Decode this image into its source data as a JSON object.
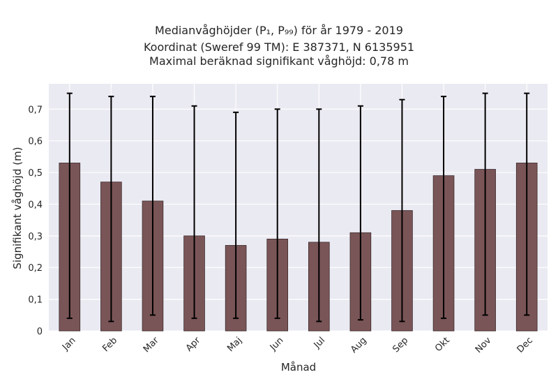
{
  "title": {
    "line1": "Medianvåghöjder (P₁, P₉₉) för år 1979 - 2019",
    "line2": "Koordinat (Sweref 99 TM): E 387371, N 6135951",
    "line3": "Maximal beräknad signifikant våghöjd: 0,78 m"
  },
  "colors": {
    "bar": "#7a5557",
    "bar_edge": "#3a2a2b",
    "plot_bg": "#eaeaf2",
    "grid": "#ffffff",
    "errorbar": "#000000"
  },
  "chart_data": {
    "type": "bar",
    "xlabel": "Månad",
    "ylabel": "Signifikant våghöjd (m)",
    "ylim": [
      0,
      0.78
    ],
    "yticks": [
      "0",
      "0,1",
      "0,2",
      "0,3",
      "0,4",
      "0,5",
      "0,6",
      "0,7"
    ],
    "ytick_values": [
      0,
      0.1,
      0.2,
      0.3,
      0.4,
      0.5,
      0.6,
      0.7
    ],
    "grid": true,
    "categories": [
      "Jan",
      "Feb",
      "Mar",
      "Apr",
      "Maj",
      "Jun",
      "Jul",
      "Aug",
      "Sep",
      "Okt",
      "Nov",
      "Dec"
    ],
    "values": [
      0.53,
      0.47,
      0.41,
      0.3,
      0.27,
      0.29,
      0.28,
      0.31,
      0.38,
      0.49,
      0.51,
      0.53
    ],
    "p1": [
      0.04,
      0.03,
      0.05,
      0.04,
      0.04,
      0.04,
      0.03,
      0.035,
      0.03,
      0.04,
      0.05,
      0.05
    ],
    "p99": [
      0.75,
      0.74,
      0.74,
      0.71,
      0.69,
      0.7,
      0.7,
      0.71,
      0.73,
      0.74,
      0.75,
      0.75
    ]
  }
}
